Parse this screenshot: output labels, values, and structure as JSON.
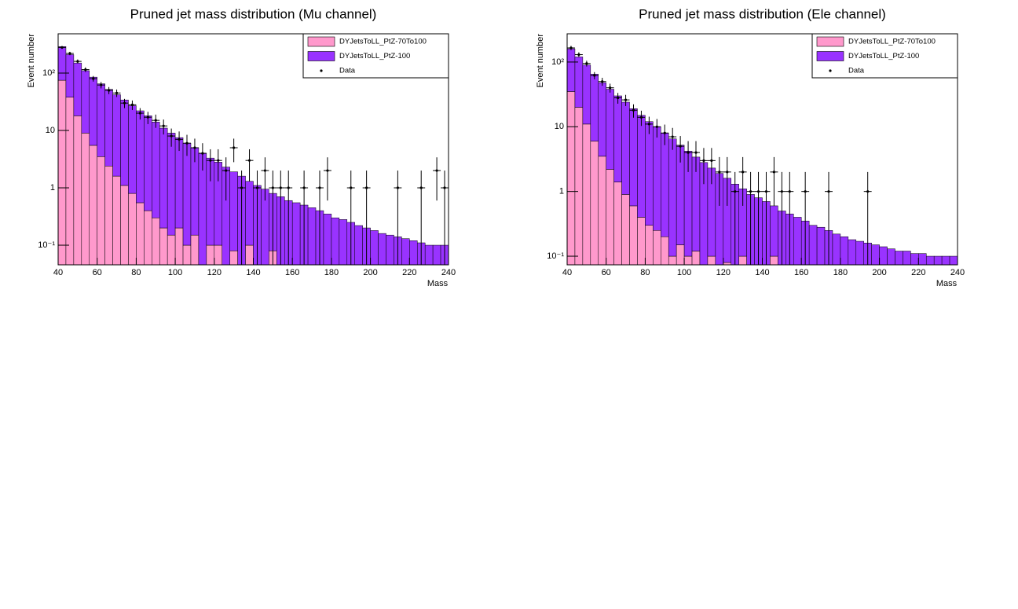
{
  "chart_data": [
    {
      "type": "histogram",
      "title": "Pruned jet mass distribution (Mu channel)",
      "xlabel": "Mass",
      "ylabel": "Event number",
      "stacked": true,
      "log_y": true,
      "legend": "top right",
      "xlim": [
        40,
        240
      ],
      "xticks": [
        40,
        60,
        80,
        100,
        120,
        140,
        160,
        180,
        200,
        220,
        240
      ],
      "ylim": [
        0.0455,
        484
      ],
      "yticks": [
        {
          "value": 0.1,
          "label": "10⁻¹"
        },
        1,
        10,
        {
          "value": 100,
          "label": "10²"
        }
      ],
      "bins": [
        40,
        44,
        48,
        52,
        56,
        60,
        64,
        68,
        72,
        76,
        80,
        84,
        88,
        92,
        96,
        100,
        104,
        108,
        112,
        116,
        120,
        124,
        128,
        132,
        136,
        140,
        144,
        148,
        152,
        156,
        160,
        164,
        168,
        172,
        176,
        180,
        184,
        188,
        192,
        196,
        200,
        204,
        208,
        212,
        216,
        220,
        224,
        228,
        232,
        236,
        240
      ],
      "series": [
        {
          "name": "DYJetsToLL_PtZ-70To100",
          "color": "#ff99cc",
          "style": "fill",
          "values": [
            75,
            38,
            18,
            9,
            5.5,
            3.5,
            2.4,
            1.6,
            1.1,
            0.8,
            0.55,
            0.4,
            0.3,
            0.2,
            0.15,
            0.2,
            0.1,
            0.15,
            0,
            0.1,
            0.1,
            0,
            0.08,
            0,
            0.1,
            0,
            0,
            0.08,
            0,
            0,
            0,
            0,
            0,
            0,
            0,
            0,
            0,
            0,
            0,
            0,
            0,
            0,
            0,
            0,
            0,
            0,
            0,
            0,
            0,
            0
          ]
        },
        {
          "name": "DYJetsToLL_PtZ-100",
          "color": "#9933ff",
          "style": "fill",
          "values": [
            215,
            172,
            132,
            101,
            79.5,
            61.5,
            49.6,
            40.4,
            32.9,
            26.2,
            21.45,
            17.6,
            13.7,
            10.8,
            8.85,
            7.3,
            5.9,
            4.85,
            4,
            3.2,
            2.7,
            2.3,
            1.82,
            1.6,
            1.2,
            1.1,
            0.95,
            0.72,
            0.7,
            0.6,
            0.55,
            0.5,
            0.45,
            0.4,
            0.35,
            0.3,
            0.28,
            0.25,
            0.22,
            0.2,
            0.18,
            0.16,
            0.15,
            0.14,
            0.13,
            0.12,
            0.11,
            0.1,
            0.1,
            0.1
          ]
        },
        {
          "name": "Data",
          "color": "#000000",
          "style": "points",
          "values": [
            280,
            220,
            160,
            115,
            80,
            62,
            50,
            45,
            30,
            28,
            20,
            17,
            15,
            12,
            8,
            7,
            6,
            5,
            4,
            3,
            3,
            2,
            5,
            1,
            3,
            1,
            2,
            1,
            1,
            1,
            null,
            1,
            null,
            1,
            2,
            null,
            null,
            1,
            null,
            1,
            null,
            null,
            null,
            1,
            null,
            null,
            1,
            null,
            2,
            1
          ],
          "errors": [
            16.7,
            14.8,
            12.6,
            10.7,
            8.9,
            7.9,
            7.1,
            6.7,
            5.5,
            5.3,
            4.5,
            4.1,
            3.9,
            3.5,
            2.8,
            2.6,
            2.4,
            2.2,
            2,
            1.7,
            1.7,
            1.4,
            2.2,
            1,
            1.7,
            1,
            1.4,
            1,
            1,
            1,
            null,
            1,
            null,
            1,
            1.4,
            null,
            null,
            1,
            null,
            1,
            null,
            null,
            null,
            1,
            null,
            null,
            1,
            null,
            1.4,
            1
          ]
        }
      ]
    },
    {
      "type": "histogram",
      "title": "Pruned jet mass distribution (Ele channel)",
      "xlabel": "Mass",
      "ylabel": "Event number",
      "stacked": true,
      "log_y": true,
      "legend": "top right",
      "xlim": [
        40,
        240
      ],
      "xticks": [
        40,
        60,
        80,
        100,
        120,
        140,
        160,
        180,
        200,
        220,
        240
      ],
      "ylim": [
        0.0736,
        273
      ],
      "yticks": [
        {
          "value": 0.1,
          "label": "10⁻¹"
        },
        1,
        10,
        {
          "value": 100,
          "label": "10²"
        }
      ],
      "bins": [
        40,
        44,
        48,
        52,
        56,
        60,
        64,
        68,
        72,
        76,
        80,
        84,
        88,
        92,
        96,
        100,
        104,
        108,
        112,
        116,
        120,
        124,
        128,
        132,
        136,
        140,
        144,
        148,
        152,
        156,
        160,
        164,
        168,
        172,
        176,
        180,
        184,
        188,
        192,
        196,
        200,
        204,
        208,
        212,
        216,
        220,
        224,
        228,
        232,
        236,
        240
      ],
      "series": [
        {
          "name": "DYJetsToLL_PtZ-70To100",
          "color": "#ff99cc",
          "style": "fill",
          "values": [
            35,
            20,
            11,
            6,
            3.5,
            2.2,
            1.4,
            0.9,
            0.6,
            0.4,
            0.3,
            0.25,
            0.2,
            0.1,
            0.15,
            0.1,
            0.12,
            0,
            0.1,
            0,
            0.08,
            0,
            0.1,
            0,
            0,
            0,
            0.1,
            0,
            0,
            0,
            0,
            0,
            0,
            0,
            0,
            0,
            0,
            0,
            0,
            0,
            0,
            0,
            0,
            0,
            0,
            0,
            0,
            0,
            0,
            0
          ]
        },
        {
          "name": "DYJetsToLL_PtZ-100",
          "color": "#9933ff",
          "style": "fill",
          "values": [
            125,
            100,
            79,
            59,
            44.5,
            35.8,
            28.6,
            23.1,
            18.4,
            14.6,
            11.7,
            9.75,
            7.8,
            6.4,
            5.05,
            4.1,
            3.28,
            2.8,
            2.2,
            1.9,
            1.52,
            1.3,
            1.0,
            0.9,
            0.8,
            0.7,
            0.5,
            0.5,
            0.45,
            0.4,
            0.35,
            0.3,
            0.28,
            0.25,
            0.22,
            0.2,
            0.18,
            0.17,
            0.16,
            0.15,
            0.14,
            0.13,
            0.12,
            0.12,
            0.11,
            0.11,
            0.1,
            0.1,
            0.1,
            0.1
          ]
        },
        {
          "name": "Data",
          "color": "#000000",
          "style": "points",
          "values": [
            165,
            130,
            95,
            62,
            50,
            40,
            28,
            26,
            18,
            14,
            11,
            10,
            8,
            7,
            5,
            4,
            4,
            3,
            3,
            2,
            2,
            1,
            2,
            1,
            1,
            1,
            2,
            1,
            1,
            null,
            1,
            null,
            null,
            1,
            null,
            null,
            null,
            null,
            1,
            null,
            null,
            null,
            null,
            null,
            null,
            null,
            null,
            null,
            null,
            null
          ],
          "errors": [
            12.8,
            11.4,
            9.7,
            7.9,
            7.1,
            6.3,
            5.3,
            5.1,
            4.2,
            3.7,
            3.3,
            3.2,
            2.8,
            2.6,
            2.2,
            2,
            2,
            1.7,
            1.7,
            1.4,
            1.4,
            1,
            1.4,
            1,
            1,
            1,
            1.4,
            1,
            1,
            null,
            1,
            null,
            null,
            1,
            null,
            null,
            null,
            null,
            1,
            null,
            null,
            null,
            null,
            null,
            null,
            null,
            null,
            null,
            null,
            null
          ]
        }
      ]
    }
  ]
}
